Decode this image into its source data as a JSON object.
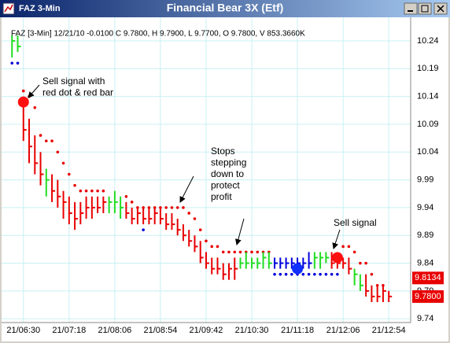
{
  "chart_data": {
    "type": "ohlc",
    "window_label": "FAZ 3-Min",
    "title": "Financial Bear 3X (Etf)",
    "header": "FAZ [3-Min] 12/21/10  -0.0100 C 9.7800, H 9.7900, L 9.7700, O 9.7800, V 853.3660K",
    "x": [
      378,
      384,
      390,
      396,
      402,
      408,
      414,
      420,
      426,
      432,
      438,
      444,
      450,
      456,
      462,
      468,
      474,
      480,
      486,
      492,
      498,
      504,
      510,
      516,
      522,
      528,
      534,
      540,
      546,
      552,
      558,
      564,
      570,
      576,
      582,
      588,
      594,
      600,
      606,
      612,
      618,
      624,
      630,
      636,
      642,
      648,
      654,
      660,
      666,
      672,
      678,
      684,
      690,
      696,
      702,
      708,
      714,
      720,
      726,
      732,
      738,
      744,
      750,
      756,
      762,
      768,
      774
    ],
    "high": [
      10.25,
      10.25,
      10.14,
      10.1,
      10.07,
      10.04,
      10.01,
      10.0,
      9.99,
      9.97,
      9.96,
      9.95,
      9.95,
      9.96,
      9.96,
      9.96,
      9.96,
      9.96,
      9.97,
      9.96,
      9.95,
      9.94,
      9.94,
      9.94,
      9.94,
      9.94,
      9.94,
      9.93,
      9.93,
      9.92,
      9.91,
      9.9,
      9.89,
      9.88,
      9.86,
      9.85,
      9.85,
      9.84,
      9.84,
      9.85,
      9.85,
      9.86,
      9.85,
      9.85,
      9.86,
      9.86,
      9.85,
      9.85,
      9.85,
      9.85,
      9.85,
      9.85,
      9.86,
      9.86,
      9.86,
      9.86,
      9.86,
      9.86,
      9.85,
      9.85,
      9.83,
      9.82,
      9.82,
      9.8,
      9.8,
      9.8,
      9.79
    ],
    "low": [
      10.21,
      10.22,
      10.06,
      10.02,
      10.0,
      9.98,
      9.96,
      9.95,
      9.94,
      9.92,
      9.91,
      9.9,
      9.91,
      9.92,
      9.92,
      9.93,
      9.93,
      9.93,
      9.93,
      9.92,
      9.92,
      9.91,
      9.91,
      9.91,
      9.91,
      9.91,
      9.91,
      9.9,
      9.9,
      9.89,
      9.88,
      9.87,
      9.86,
      9.84,
      9.83,
      9.82,
      9.82,
      9.81,
      9.81,
      9.81,
      9.83,
      9.83,
      9.83,
      9.83,
      9.83,
      9.83,
      9.83,
      9.83,
      9.83,
      9.83,
      9.83,
      9.83,
      9.83,
      9.83,
      9.83,
      9.84,
      9.83,
      9.83,
      9.83,
      9.82,
      9.8,
      9.79,
      9.78,
      9.77,
      9.77,
      9.77,
      9.77
    ],
    "close": [
      10.24,
      10.23,
      10.08,
      10.05,
      10.02,
      10.0,
      9.99,
      9.97,
      9.96,
      9.95,
      9.93,
      9.92,
      9.93,
      9.94,
      9.94,
      9.94,
      9.95,
      9.95,
      9.95,
      9.94,
      9.93,
      9.92,
      9.93,
      9.92,
      9.92,
      9.93,
      9.92,
      9.91,
      9.91,
      9.9,
      9.89,
      9.88,
      9.87,
      9.85,
      9.84,
      9.83,
      9.83,
      9.82,
      9.83,
      9.83,
      9.84,
      9.84,
      9.84,
      9.84,
      9.85,
      9.84,
      9.84,
      9.84,
      9.84,
      9.84,
      9.84,
      9.84,
      9.84,
      9.85,
      9.85,
      9.85,
      9.84,
      9.84,
      9.84,
      9.83,
      9.82,
      9.8,
      9.79,
      9.78,
      9.78,
      9.79,
      9.78
    ],
    "bar_colors": [
      "#22dd22",
      "#22dd22",
      "#e80000",
      "#e80000",
      "#e80000",
      "#e80000",
      "#22dd22",
      "#e80000",
      "#e80000",
      "#e80000",
      "#e80000",
      "#e80000",
      "#e80000",
      "#e80000",
      "#e80000",
      "#e80000",
      "#e80000",
      "#22dd22",
      "#22dd22",
      "#22dd22",
      "#e80000",
      "#e80000",
      "#e80000",
      "#e80000",
      "#e80000",
      "#e80000",
      "#e80000",
      "#e80000",
      "#e80000",
      "#e80000",
      "#e80000",
      "#e80000",
      "#e80000",
      "#e80000",
      "#e80000",
      "#e80000",
      "#e80000",
      "#e80000",
      "#e80000",
      "#e80000",
      "#22dd22",
      "#22dd22",
      "#22dd22",
      "#22dd22",
      "#22dd22",
      "#22dd22",
      "#0000dd",
      "#0000dd",
      "#0000dd",
      "#0000dd",
      "#0000dd",
      "#0000dd",
      "#0000dd",
      "#22dd22",
      "#22dd22",
      "#22dd22",
      "#e80000",
      "#e80000",
      "#e80000",
      "#e80000",
      "#22dd22",
      "#22dd22",
      "#e80000",
      "#e80000",
      "#e80000",
      "#e80000",
      "#e80000"
    ],
    "stop_sell": {
      "color": "#e80000",
      "values": [
        null,
        null,
        10.15,
        10.14,
        10.12,
        10.07,
        10.06,
        10.06,
        10.04,
        10.02,
        10.0,
        9.98,
        9.97,
        9.97,
        9.97,
        9.97,
        9.97,
        null,
        null,
        null,
        9.96,
        9.95,
        9.94,
        9.94,
        9.94,
        9.94,
        9.94,
        9.94,
        9.94,
        9.94,
        9.94,
        9.93,
        9.92,
        9.9,
        9.88,
        9.87,
        9.87,
        9.86,
        9.86,
        9.86,
        9.86,
        9.86,
        9.86,
        9.86,
        9.86,
        9.86,
        null,
        null,
        null,
        null,
        null,
        null,
        null,
        null,
        null,
        null,
        null,
        null,
        9.87,
        9.87,
        9.86,
        9.84,
        9.84,
        9.82,
        9.8,
        9.8,
        null
      ]
    },
    "stop_buy": {
      "color": "#0000dd",
      "values": [
        10.2,
        10.2,
        null,
        null,
        null,
        null,
        null,
        null,
        null,
        null,
        null,
        null,
        null,
        null,
        null,
        null,
        null,
        null,
        null,
        null,
        null,
        null,
        null,
        9.9,
        null,
        null,
        null,
        null,
        null,
        null,
        null,
        null,
        null,
        null,
        null,
        null,
        null,
        null,
        null,
        null,
        null,
        null,
        null,
        null,
        null,
        null,
        9.82,
        9.82,
        9.82,
        9.82,
        9.82,
        9.82,
        9.82,
        9.82,
        9.82,
        9.82,
        9.82,
        9.82,
        null,
        null,
        null,
        null,
        null,
        null,
        null,
        null,
        null
      ]
    },
    "signals": [
      {
        "x": 390,
        "value": 10.13,
        "color": "#ff1010"
      },
      {
        "x": 678,
        "value": 9.83,
        "color": "#1030ff"
      },
      {
        "x": 720,
        "value": 9.85,
        "color": "#ff1010"
      }
    ],
    "annotations": [
      {
        "lines": [
          "Sell signal with",
          "red dot & red bar"
        ]
      },
      {
        "lines": [
          "Stops",
          "stepping",
          "down to",
          "protect",
          "profit"
        ]
      },
      {
        "lines": [
          "Sell signal"
        ]
      }
    ],
    "xlim": [
      372,
      797
    ],
    "xticks": [
      {
        "value": 390,
        "label": "21/06:30"
      },
      {
        "value": 438,
        "label": "21/07:18"
      },
      {
        "value": 486,
        "label": "21/08:06"
      },
      {
        "value": 534,
        "label": "21/08:54"
      },
      {
        "value": 582,
        "label": "21/09:42"
      },
      {
        "value": 630,
        "label": "21/10:30"
      },
      {
        "value": 678,
        "label": "21/11:18"
      },
      {
        "value": 726,
        "label": "21/12:06"
      },
      {
        "value": 774,
        "label": "21/12:54"
      }
    ],
    "ylim": [
      9.736,
      10.274
    ],
    "yticks": [
      10.24,
      10.19,
      10.14,
      10.09,
      10.04,
      9.99,
      9.94,
      9.89,
      9.84,
      9.79,
      9.74
    ],
    "price_markers": [
      9.8134,
      {
        "value": 9.78,
        "label": "9.7800"
      }
    ],
    "grid": true
  }
}
